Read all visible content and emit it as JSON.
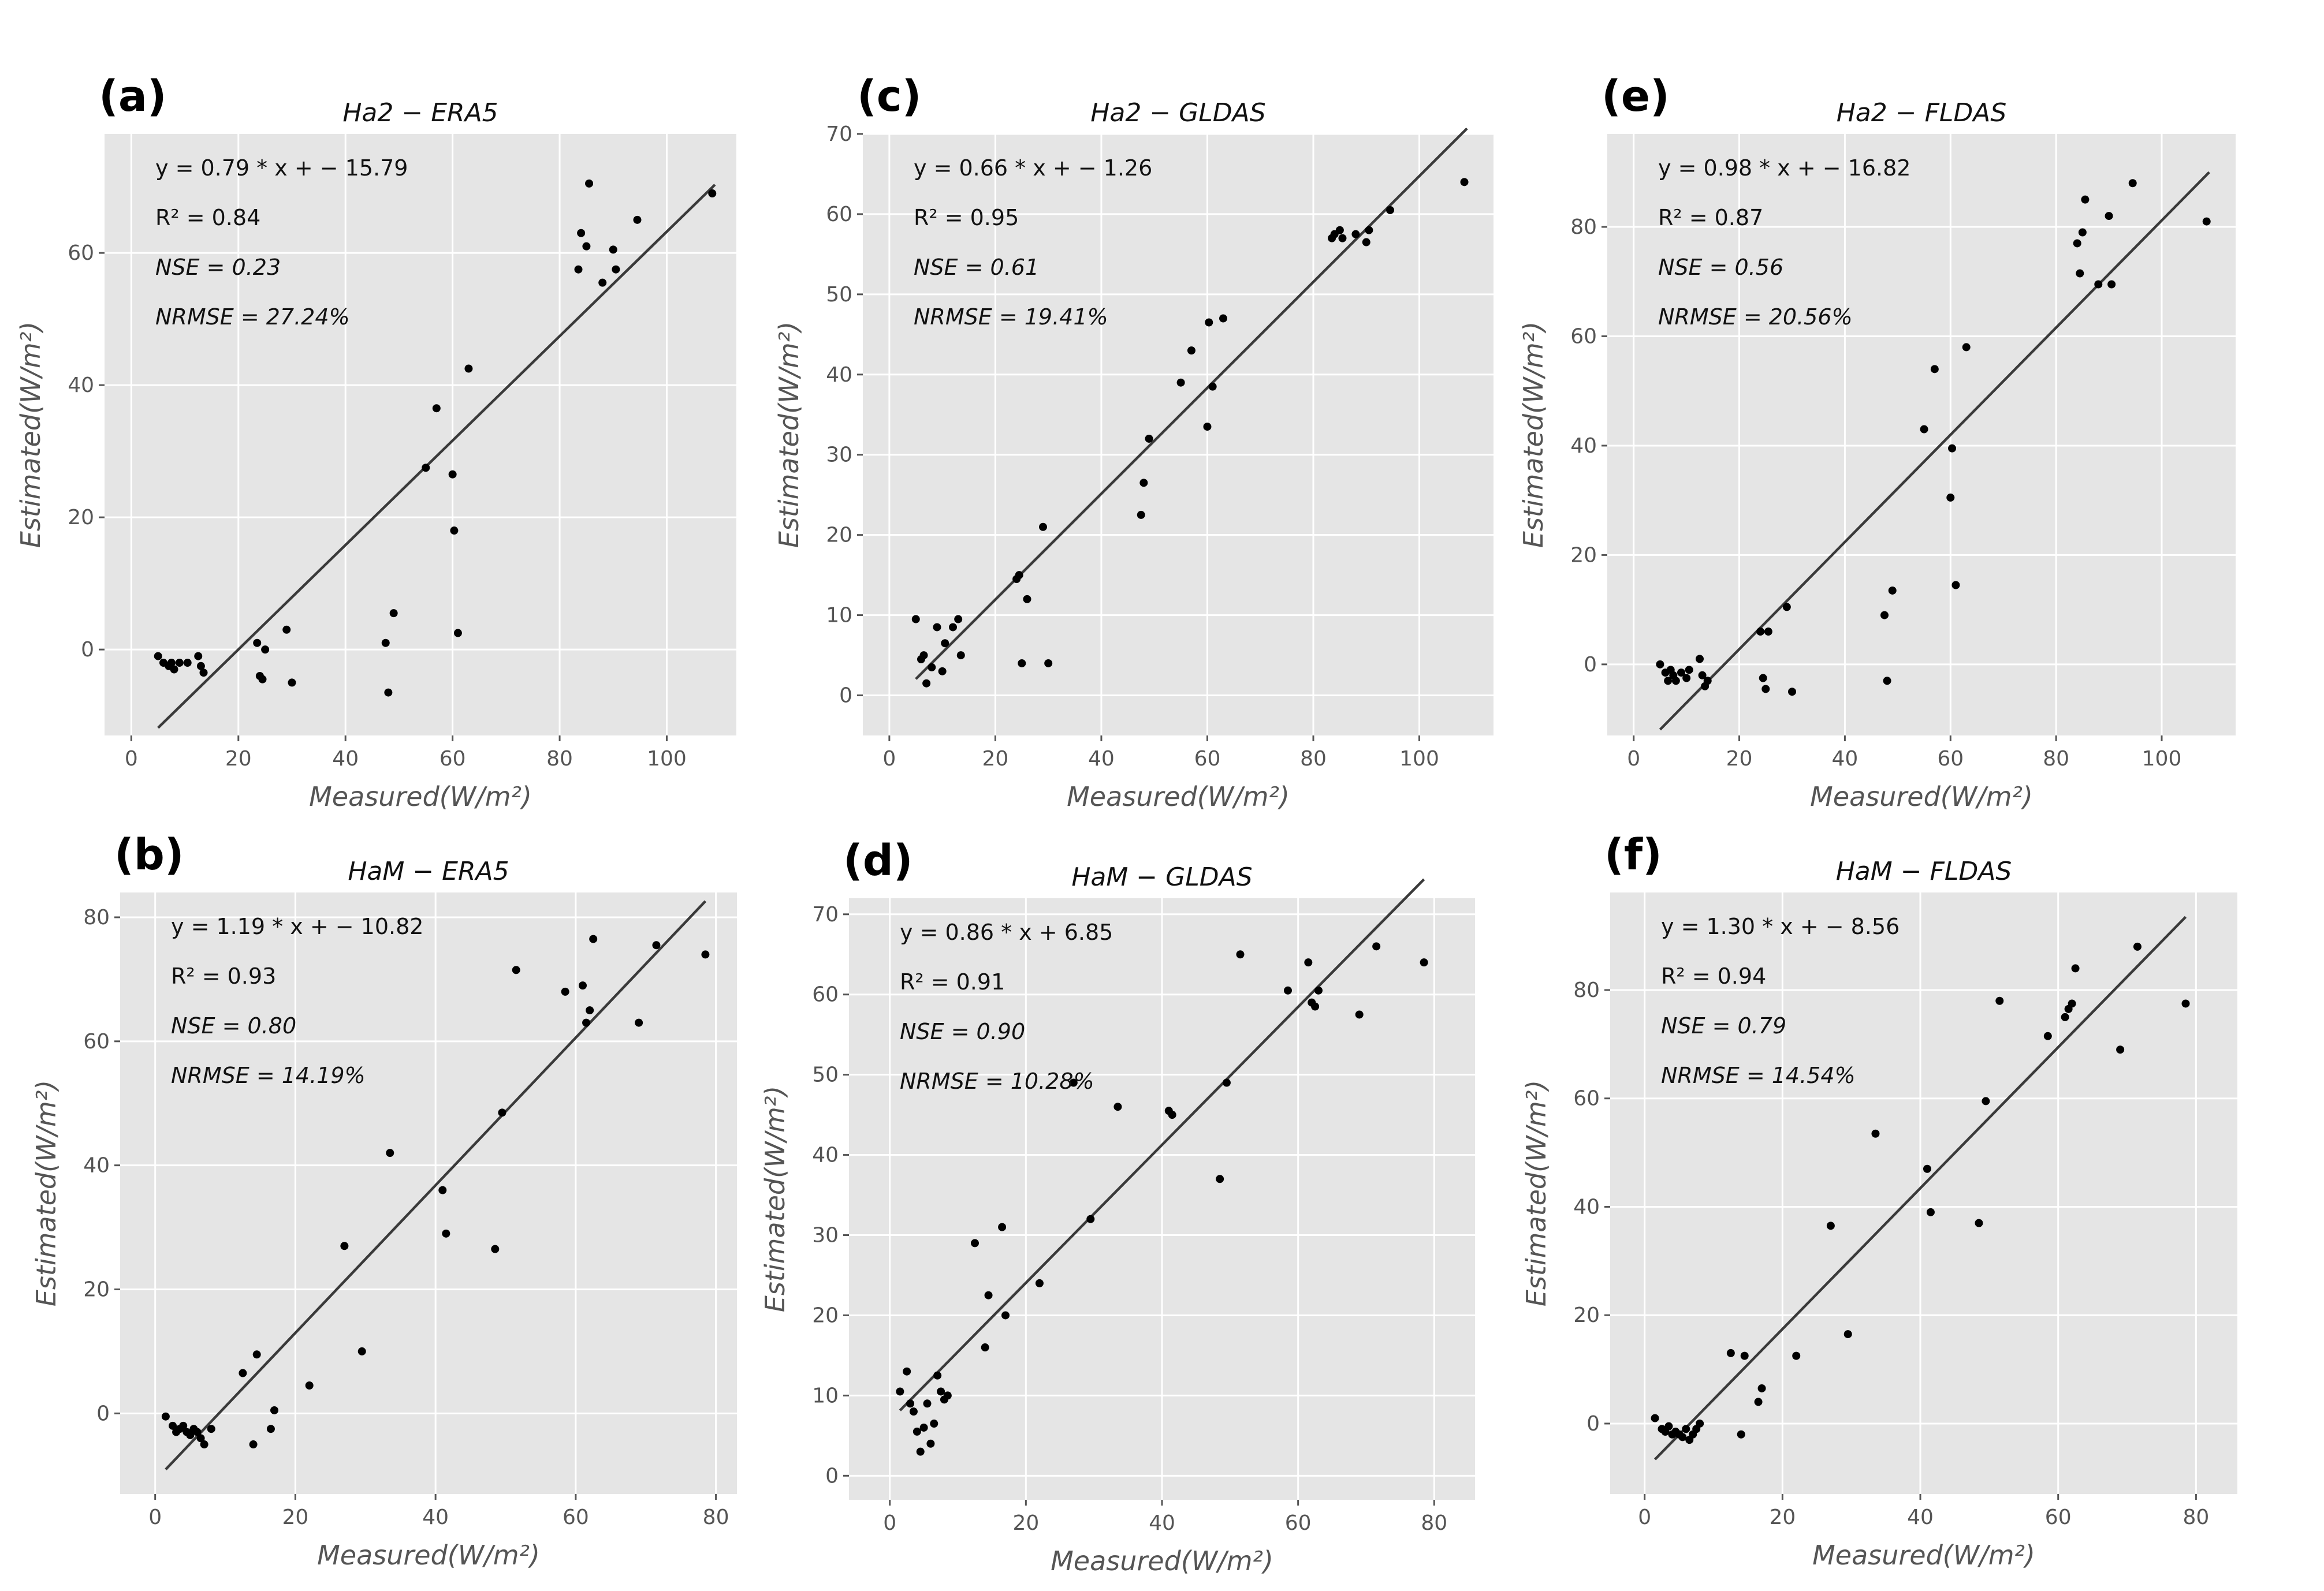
{
  "chart_data": [
    {
      "id": "a",
      "type": "scatter",
      "panel_label": "(a)",
      "title": "Ha2 − ERA5",
      "xlabel": "Measured(W/m²)",
      "ylabel": "Estimated(W/m²)",
      "xlim": [
        -5,
        113
      ],
      "ylim": [
        -13,
        78
      ],
      "xticks": [
        0,
        20,
        40,
        60,
        80,
        100
      ],
      "yticks": [
        0,
        20,
        40,
        60
      ],
      "fit": {
        "slope": 0.79,
        "intercept": -15.79,
        "x_range": [
          5,
          109
        ]
      },
      "stats": {
        "equation": "y = 0.79 * x + − 15.79",
        "r2": "R² = 0.84",
        "nse": "NSE = 0.23",
        "nrmse": "NRMSE = 27.24%"
      },
      "points": [
        [
          5,
          -1
        ],
        [
          6,
          -2
        ],
        [
          7,
          -2.5
        ],
        [
          7.5,
          -2
        ],
        [
          8,
          -3
        ],
        [
          9,
          -2
        ],
        [
          10.5,
          -2
        ],
        [
          12.5,
          -1
        ],
        [
          13,
          -2.5
        ],
        [
          13.5,
          -3.5
        ],
        [
          23.5,
          1
        ],
        [
          24,
          -4
        ],
        [
          24.5,
          -4.5
        ],
        [
          25,
          0
        ],
        [
          29,
          3
        ],
        [
          30,
          -5
        ],
        [
          47.5,
          1
        ],
        [
          48,
          -6.5
        ],
        [
          49,
          5.5
        ],
        [
          55,
          27.5
        ],
        [
          57,
          36.5
        ],
        [
          60,
          26.5
        ],
        [
          60.3,
          18
        ],
        [
          61,
          2.5
        ],
        [
          63,
          42.5
        ],
        [
          83.5,
          57.5
        ],
        [
          84,
          63
        ],
        [
          85,
          61
        ],
        [
          85.5,
          70.5
        ],
        [
          88,
          55.5
        ],
        [
          90,
          60.5
        ],
        [
          90.5,
          57.5
        ],
        [
          94.5,
          65
        ],
        [
          108.5,
          69
        ]
      ]
    },
    {
      "id": "b",
      "type": "scatter",
      "panel_label": "(b)",
      "title": "HaM − ERA5",
      "xlabel": "Measured(W/m²)",
      "ylabel": "Estimated(W/m²)",
      "xlim": [
        -5,
        83
      ],
      "ylim": [
        -13,
        84
      ],
      "xticks": [
        0,
        20,
        40,
        60,
        80
      ],
      "yticks": [
        0,
        20,
        40,
        60,
        80
      ],
      "fit": {
        "slope": 1.19,
        "intercept": -10.82,
        "x_range": [
          1.5,
          78.5
        ]
      },
      "stats": {
        "equation": "y = 1.19 * x + − 10.82",
        "r2": "R² = 0.93",
        "nse": "NSE = 0.80",
        "nrmse": "NRMSE = 14.19%"
      },
      "points": [
        [
          1.5,
          -0.5
        ],
        [
          2.5,
          -2
        ],
        [
          3,
          -3
        ],
        [
          3.5,
          -2.5
        ],
        [
          4,
          -2
        ],
        [
          4.5,
          -3
        ],
        [
          5,
          -3.5
        ],
        [
          5.5,
          -2.5
        ],
        [
          6,
          -3
        ],
        [
          6.5,
          -4
        ],
        [
          7,
          -5
        ],
        [
          8,
          -2.5
        ],
        [
          12.5,
          6.5
        ],
        [
          14,
          -5
        ],
        [
          14.5,
          9.5
        ],
        [
          16.5,
          -2.5
        ],
        [
          17,
          0.5
        ],
        [
          22,
          4.5
        ],
        [
          27,
          27
        ],
        [
          29.5,
          10
        ],
        [
          33.5,
          42
        ],
        [
          41,
          36
        ],
        [
          41.5,
          29
        ],
        [
          48.5,
          26.5
        ],
        [
          49.5,
          48.5
        ],
        [
          51.5,
          71.5
        ],
        [
          58.5,
          68
        ],
        [
          61,
          69
        ],
        [
          61.5,
          63
        ],
        [
          62,
          65
        ],
        [
          62.5,
          76.5
        ],
        [
          69,
          63
        ],
        [
          71.5,
          75.5
        ],
        [
          78.5,
          74
        ]
      ]
    },
    {
      "id": "c",
      "type": "scatter",
      "panel_label": "(c)",
      "title": "Ha2 − GLDAS",
      "xlabel": "Measured(W/m²)",
      "ylabel": "Estimated(W/m²)",
      "xlim": [
        -5,
        114
      ],
      "ylim": [
        -5,
        70
      ],
      "xticks": [
        0,
        20,
        40,
        60,
        80,
        100
      ],
      "yticks": [
        0,
        10,
        20,
        30,
        40,
        50,
        60,
        70
      ],
      "fit": {
        "slope": 0.66,
        "intercept": -1.26,
        "x_range": [
          5,
          109
        ]
      },
      "stats": {
        "equation": "y = 0.66 * x + − 1.26",
        "r2": "R² = 0.95",
        "nse": "NSE = 0.61",
        "nrmse": "NRMSE = 19.41%"
      },
      "points": [
        [
          5,
          9.5
        ],
        [
          6,
          4.5
        ],
        [
          6.5,
          5
        ],
        [
          7,
          1.5
        ],
        [
          8,
          3.5
        ],
        [
          9,
          8.5
        ],
        [
          10,
          3
        ],
        [
          10.5,
          6.5
        ],
        [
          12,
          8.5
        ],
        [
          13,
          9.5
        ],
        [
          13.5,
          5
        ],
        [
          24,
          14.5
        ],
        [
          24.5,
          15
        ],
        [
          25,
          4
        ],
        [
          26,
          12
        ],
        [
          29,
          21
        ],
        [
          30,
          4
        ],
        [
          47.5,
          22.5
        ],
        [
          48,
          26.5
        ],
        [
          49,
          32
        ],
        [
          55,
          39
        ],
        [
          57,
          43
        ],
        [
          60,
          33.5
        ],
        [
          60.3,
          46.5
        ],
        [
          61,
          38.5
        ],
        [
          63,
          47
        ],
        [
          83.5,
          57
        ],
        [
          84,
          57.5
        ],
        [
          85,
          58
        ],
        [
          85.5,
          57
        ],
        [
          88,
          57.5
        ],
        [
          90,
          56.5
        ],
        [
          90.5,
          58
        ],
        [
          94.5,
          60.5
        ],
        [
          108.5,
          64
        ]
      ]
    },
    {
      "id": "d",
      "type": "scatter",
      "panel_label": "(d)",
      "title": "HaM − GLDAS",
      "xlabel": "Measured(W/m²)",
      "ylabel": "Estimated(W/m²)",
      "xlim": [
        -6,
        86
      ],
      "ylim": [
        -3,
        72
      ],
      "xticks": [
        0,
        20,
        40,
        60,
        80
      ],
      "yticks": [
        0,
        10,
        20,
        30,
        40,
        50,
        60,
        70
      ],
      "fit": {
        "slope": 0.86,
        "intercept": 6.85,
        "x_range": [
          1.5,
          78.5
        ]
      },
      "stats": {
        "equation": "y = 0.86 * x + 6.85",
        "r2": "R² = 0.91",
        "nse": "NSE = 0.90",
        "nrmse": "NRMSE = 10.28%"
      },
      "points": [
        [
          1.5,
          10.5
        ],
        [
          2.5,
          13
        ],
        [
          3,
          9
        ],
        [
          3.5,
          8
        ],
        [
          4,
          5.5
        ],
        [
          4.5,
          3
        ],
        [
          5,
          6
        ],
        [
          5.5,
          9
        ],
        [
          6,
          4
        ],
        [
          6.5,
          6.5
        ],
        [
          7,
          12.5
        ],
        [
          7.5,
          10.5
        ],
        [
          8,
          9.5
        ],
        [
          8.5,
          10
        ],
        [
          12.5,
          29
        ],
        [
          14,
          16
        ],
        [
          14.5,
          22.5
        ],
        [
          16.5,
          31
        ],
        [
          17,
          20
        ],
        [
          22,
          24
        ],
        [
          27,
          49
        ],
        [
          29.5,
          32
        ],
        [
          33.5,
          46
        ],
        [
          41,
          45.5
        ],
        [
          41.5,
          45
        ],
        [
          48.5,
          37
        ],
        [
          49.5,
          49
        ],
        [
          51.5,
          65
        ],
        [
          58.5,
          60.5
        ],
        [
          61.5,
          64
        ],
        [
          62,
          59
        ],
        [
          62.5,
          58.5
        ],
        [
          63,
          60.5
        ],
        [
          69,
          57.5
        ],
        [
          71.5,
          66
        ],
        [
          78.5,
          64
        ]
      ]
    },
    {
      "id": "e",
      "type": "scatter",
      "panel_label": "(e)",
      "title": "Ha2 − FLDAS",
      "xlabel": "Measured(W/m²)",
      "ylabel": "Estimated(W/m²)",
      "xlim": [
        -5,
        114
      ],
      "ylim": [
        -13,
        97
      ],
      "xticks": [
        0,
        20,
        40,
        60,
        80,
        100
      ],
      "yticks": [
        0,
        20,
        40,
        60,
        80
      ],
      "fit": {
        "slope": 0.98,
        "intercept": -16.82,
        "x_range": [
          5,
          109
        ]
      },
      "stats": {
        "equation": "y = 0.98 * x + − 16.82",
        "r2": "R² = 0.87",
        "nse": "NSE = 0.56",
        "nrmse": "NRMSE = 20.56%"
      },
      "points": [
        [
          5,
          0
        ],
        [
          6,
          -1.5
        ],
        [
          6.5,
          -3
        ],
        [
          7,
          -1
        ],
        [
          7.5,
          -2
        ],
        [
          8,
          -3
        ],
        [
          9,
          -1.5
        ],
        [
          10,
          -2.5
        ],
        [
          10.5,
          -1
        ],
        [
          12.5,
          1
        ],
        [
          13,
          -2
        ],
        [
          13.5,
          -4
        ],
        [
          14,
          -3
        ],
        [
          24,
          6
        ],
        [
          24.5,
          -2.5
        ],
        [
          25,
          -4.5
        ],
        [
          25.5,
          6
        ],
        [
          29,
          10.5
        ],
        [
          30,
          -5
        ],
        [
          47.5,
          9
        ],
        [
          48,
          -3
        ],
        [
          49,
          13.5
        ],
        [
          55,
          43
        ],
        [
          57,
          54
        ],
        [
          60,
          30.5
        ],
        [
          60.3,
          39.5
        ],
        [
          61,
          14.5
        ],
        [
          63,
          58
        ],
        [
          84,
          77
        ],
        [
          84.5,
          71.5
        ],
        [
          85,
          79
        ],
        [
          85.5,
          85
        ],
        [
          88,
          69.5
        ],
        [
          90,
          82
        ],
        [
          90.5,
          69.5
        ],
        [
          94.5,
          88
        ],
        [
          108.5,
          81
        ]
      ]
    },
    {
      "id": "f",
      "type": "scatter",
      "panel_label": "(f)",
      "title": "HaM − FLDAS",
      "xlabel": "Measured(W/m²)",
      "ylabel": "Estimated(W/m²)",
      "xlim": [
        -5,
        86
      ],
      "ylim": [
        -13,
        98
      ],
      "xticks": [
        0,
        20,
        40,
        60,
        80
      ],
      "yticks": [
        0,
        20,
        40,
        60,
        80
      ],
      "fit": {
        "slope": 1.3,
        "intercept": -8.56,
        "x_range": [
          1.5,
          78.5
        ]
      },
      "stats": {
        "equation": "y = 1.30 * x + − 8.56",
        "r2": "R² = 0.94",
        "nse": "NSE = 0.79",
        "nrmse": "NRMSE = 14.54%"
      },
      "points": [
        [
          1.5,
          1
        ],
        [
          2.5,
          -1
        ],
        [
          3,
          -1.5
        ],
        [
          3.5,
          -0.5
        ],
        [
          4,
          -2
        ],
        [
          4.5,
          -1.5
        ],
        [
          5,
          -2
        ],
        [
          5.5,
          -2.5
        ],
        [
          6,
          -1
        ],
        [
          6.5,
          -3
        ],
        [
          7,
          -2
        ],
        [
          7.5,
          -1
        ],
        [
          8,
          0
        ],
        [
          12.5,
          13
        ],
        [
          14,
          -2
        ],
        [
          14.5,
          12.5
        ],
        [
          16.5,
          4
        ],
        [
          17,
          6.5
        ],
        [
          22,
          12.5
        ],
        [
          27,
          36.5
        ],
        [
          29.5,
          16.5
        ],
        [
          33.5,
          53.5
        ],
        [
          41,
          47
        ],
        [
          41.5,
          39
        ],
        [
          48.5,
          37
        ],
        [
          49.5,
          59.5
        ],
        [
          51.5,
          78
        ],
        [
          58.5,
          71.5
        ],
        [
          61,
          75
        ],
        [
          61.5,
          76.5
        ],
        [
          62,
          77.5
        ],
        [
          62.5,
          84
        ],
        [
          69,
          69
        ],
        [
          71.5,
          88
        ],
        [
          78.5,
          77.5
        ]
      ]
    }
  ]
}
